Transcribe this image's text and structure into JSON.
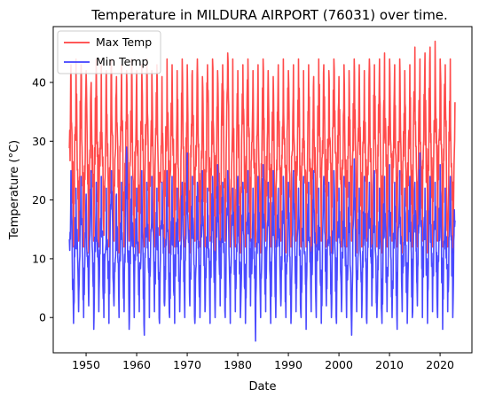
{
  "chart_data": {
    "type": "line",
    "title": "Temperature in MILDURA AIRPORT (76031) over time.",
    "xlabel": "Date",
    "ylabel": "Temperature (°C)",
    "xlim": [
      1943.5,
      2026.3
    ],
    "ylim": [
      -6.0,
      49.5
    ],
    "x_ticks": [
      "1950",
      "1960",
      "1970",
      "1980",
      "1990",
      "2000",
      "2010",
      "2020"
    ],
    "y_ticks": [
      "0",
      "10",
      "20",
      "30",
      "40"
    ],
    "grid": false,
    "legend_position": "top-left",
    "x_start": 1946.7,
    "x_end": 2023.0,
    "series": [
      {
        "name": "Max Temp",
        "color": "#ff4040",
        "summer_peaks": [
          43,
          44,
          43,
          42,
          40,
          44,
          43,
          42,
          44,
          41,
          43,
          42,
          44,
          42,
          43,
          44,
          42,
          43,
          41,
          44,
          43,
          42,
          44,
          43,
          42,
          44,
          41,
          43,
          44,
          42,
          43,
          45,
          44,
          42,
          43,
          44,
          42,
          43,
          44,
          42,
          41,
          43,
          44,
          42,
          43,
          44,
          42,
          43,
          41,
          44,
          43,
          42,
          44,
          41,
          43,
          42,
          44,
          43,
          42,
          44,
          43,
          44,
          45,
          44,
          43,
          44,
          42,
          43,
          46,
          44,
          45,
          46,
          47,
          44,
          43,
          44,
          40
        ],
        "winter_troughs": [
          12,
          13,
          12,
          11,
          13,
          12,
          14,
          12,
          13,
          11,
          12,
          13,
          12,
          11,
          12,
          13,
          12,
          14,
          12,
          11,
          12,
          13,
          12,
          11,
          13,
          12,
          12,
          13,
          11,
          12,
          13,
          12,
          12,
          11,
          12,
          13,
          12,
          11,
          13,
          12,
          12,
          13,
          11,
          12,
          13,
          12,
          12,
          11,
          12,
          13,
          12,
          11,
          13,
          12,
          12,
          13,
          11,
          12,
          13,
          12,
          12,
          11,
          12,
          13,
          12,
          11,
          13,
          12,
          12,
          13,
          11,
          12,
          13,
          12,
          12,
          11,
          12
        ]
      },
      {
        "name": "Min Temp",
        "color": "#4040ff",
        "summer_peaks": [
          25,
          22,
          24,
          21,
          25,
          23,
          24,
          22,
          25,
          21,
          23,
          29,
          24,
          22,
          25,
          23,
          24,
          22,
          23,
          25,
          24,
          22,
          23,
          28,
          24,
          23,
          25,
          22,
          24,
          26,
          23,
          25,
          22,
          24,
          23,
          25,
          22,
          24,
          26,
          23,
          25,
          22,
          24,
          23,
          25,
          22,
          24,
          23,
          25,
          22,
          24,
          23,
          25,
          22,
          24,
          23,
          27,
          22,
          24,
          23,
          25,
          22,
          24,
          26,
          23,
          25,
          22,
          24,
          23,
          28,
          22,
          24,
          23,
          26,
          22,
          24,
          29
        ],
        "winter_troughs": [
          -1,
          1,
          0,
          2,
          -2,
          1,
          0,
          -1,
          2,
          0,
          1,
          -2,
          0,
          1,
          -3,
          0,
          1,
          -1,
          2,
          0,
          -1,
          1,
          0,
          2,
          -1,
          0,
          1,
          -1,
          0,
          2,
          0,
          -1,
          1,
          0,
          -1,
          2,
          -4,
          0,
          1,
          -1,
          0,
          2,
          0,
          -1,
          1,
          0,
          -2,
          1,
          0,
          -1,
          2,
          0,
          -1,
          1,
          0,
          -3,
          1,
          0,
          -1,
          2,
          0,
          -1,
          1,
          0,
          -2,
          1,
          -1,
          0,
          2,
          0,
          -1,
          1,
          0,
          -2,
          1,
          0,
          -1
        ]
      }
    ]
  }
}
